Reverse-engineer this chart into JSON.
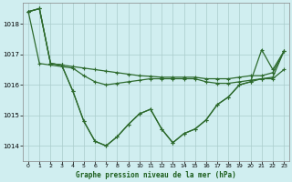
{
  "title": "Graphe pression niveau de la mer (hPa)",
  "background_color": "#d0eef0",
  "plot_bg_color": "#d0eef0",
  "line_color": "#2d6a2d",
  "grid_color": "#aacccc",
  "ylim": [
    1013.5,
    1018.7
  ],
  "yticks": [
    1014,
    1015,
    1016,
    1017,
    1018
  ],
  "xlim": [
    -0.5,
    23.5
  ],
  "xticks": [
    0,
    1,
    2,
    3,
    4,
    5,
    6,
    7,
    8,
    9,
    10,
    11,
    12,
    13,
    14,
    15,
    16,
    17,
    18,
    19,
    20,
    21,
    22,
    23
  ],
  "series1": [
    1018.4,
    1018.5,
    1016.7,
    1016.65,
    1016.6,
    1016.55,
    1016.5,
    1016.45,
    1016.4,
    1016.35,
    1016.3,
    1016.28,
    1016.25,
    1016.25,
    1016.25,
    1016.25,
    1016.2,
    1016.2,
    1016.2,
    1016.25,
    1016.3,
    1016.3,
    1016.4,
    1017.1
  ],
  "series2": [
    1018.4,
    1016.7,
    1016.65,
    1016.6,
    1016.55,
    1016.3,
    1016.1,
    1016.0,
    1016.05,
    1016.1,
    1016.15,
    1016.2,
    1016.2,
    1016.2,
    1016.2,
    1016.2,
    1016.1,
    1016.05,
    1016.05,
    1016.1,
    1016.15,
    1016.2,
    1016.2,
    1016.5
  ],
  "series3": [
    1018.4,
    1018.5,
    1016.7,
    1016.65,
    1015.8,
    1014.8,
    1014.15,
    1014.0,
    1014.3,
    1014.7,
    1015.05,
    1015.2,
    1014.55,
    1014.1,
    1014.4,
    1014.55,
    1014.85,
    1015.35,
    1015.6,
    1016.0,
    1016.1,
    1016.2,
    1016.25,
    1017.1
  ],
  "series4": [
    1018.4,
    1018.5,
    1016.7,
    1016.65,
    1015.8,
    1014.8,
    1014.15,
    1014.0,
    1014.3,
    1014.7,
    1015.05,
    1015.2,
    1014.55,
    1014.1,
    1014.4,
    1014.55,
    1014.85,
    1015.35,
    1015.6,
    1016.0,
    1016.1,
    1017.15,
    1016.5,
    1017.1
  ]
}
